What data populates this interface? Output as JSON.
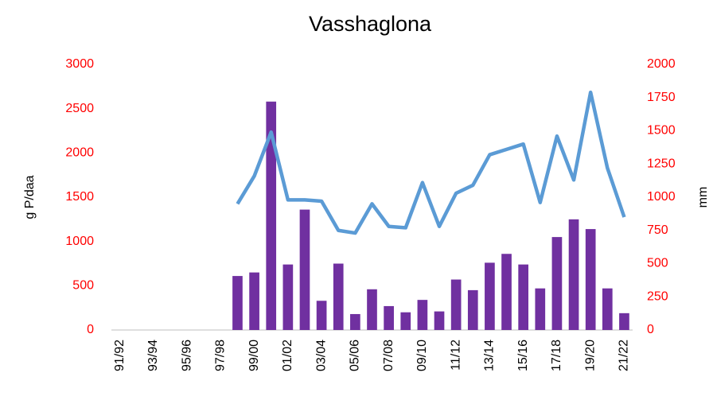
{
  "chart_data": {
    "type": "bar_line",
    "title": "Vasshaglona",
    "categories": [
      "91/92",
      null,
      "93/94",
      null,
      "95/96",
      null,
      "97/98",
      null,
      "99/00",
      null,
      "01/02",
      null,
      "03/04",
      null,
      "05/06",
      null,
      "07/08",
      null,
      "09/10",
      null,
      "11/12",
      null,
      "13/14",
      null,
      "15/16",
      null,
      "17/18",
      null,
      "19/20",
      null,
      "21/22"
    ],
    "series": [
      {
        "type": "bar",
        "color": "#7030a0",
        "values": [
          null,
          null,
          null,
          null,
          null,
          null,
          null,
          610,
          650,
          2580,
          740,
          1360,
          330,
          750,
          180,
          460,
          270,
          200,
          340,
          210,
          570,
          450,
          760,
          860,
          740,
          470,
          1050,
          1250,
          1140,
          470,
          190
        ]
      },
      {
        "type": "line",
        "axis": "y2",
        "color": "#5b9bd5",
        "values": [
          null,
          null,
          null,
          null,
          null,
          null,
          null,
          950,
          1160,
          1490,
          980,
          980,
          970,
          750,
          730,
          950,
          780,
          770,
          1110,
          780,
          1030,
          1090,
          1320,
          1360,
          1400,
          960,
          1460,
          1130,
          1790,
          1220,
          850
        ]
      }
    ],
    "ylabel": "g P/daa",
    "y2label": "mm",
    "ylim": [
      0,
      3000
    ],
    "yticks": [
      0,
      500,
      1000,
      1500,
      2000,
      2500,
      3000
    ],
    "y2lim": [
      0,
      2000
    ],
    "y2ticks": [
      0,
      250,
      500,
      750,
      1000,
      1250,
      1500,
      1750,
      2000
    ],
    "tick_color": "#ff0000"
  }
}
